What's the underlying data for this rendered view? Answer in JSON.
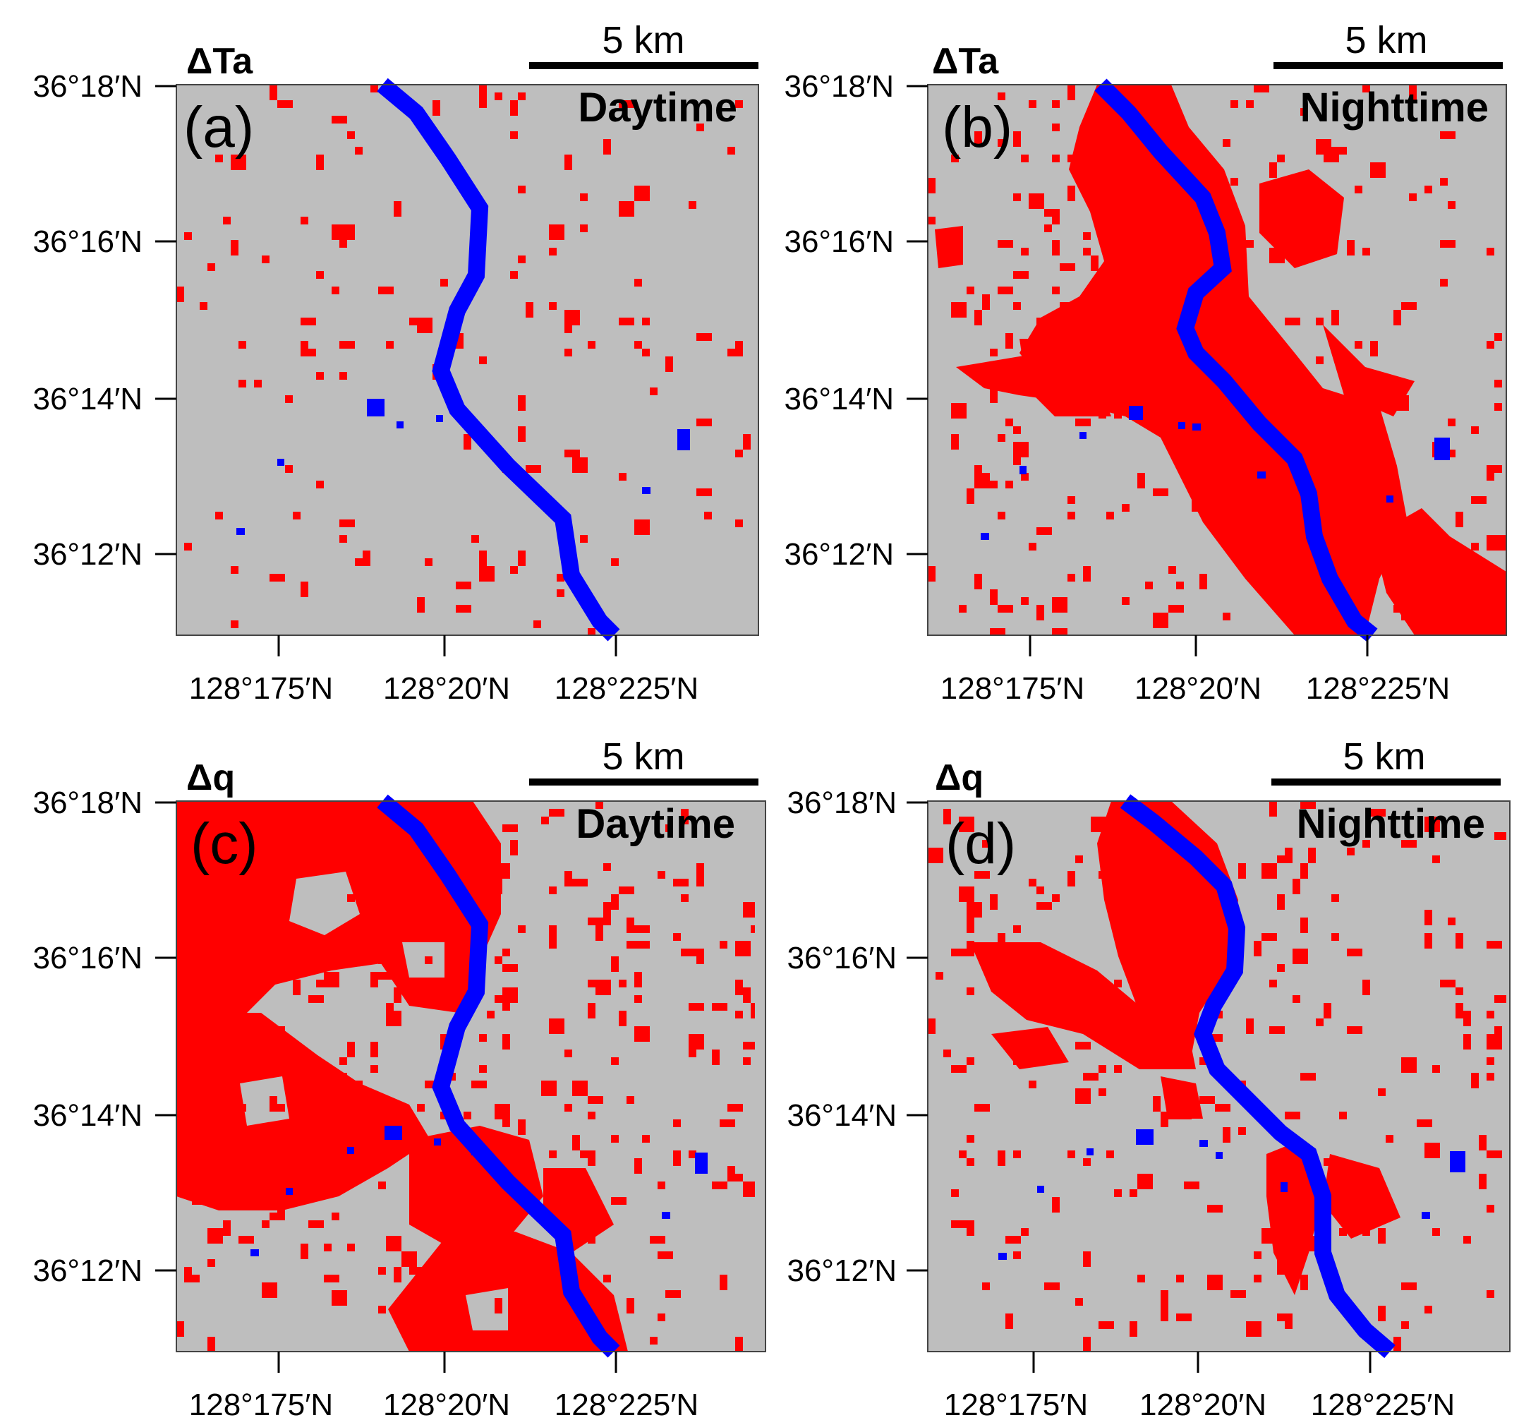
{
  "colors": {
    "background": "#bebebe",
    "increase": "#ff0000",
    "water": "#0000ff",
    "frame": "#444444"
  },
  "y_tick_labels": [
    "36°18′N",
    "36°16′N",
    "36°14′N",
    "36°12′N"
  ],
  "x_tick_labels": [
    "128°175′N",
    "128°20′N",
    "128°225′N"
  ],
  "scale_bar_label": "5 km",
  "panels": [
    {
      "letter": "(a)",
      "variable": "ΔTa",
      "period": "Daytime"
    },
    {
      "letter": "(b)",
      "variable": "ΔTa",
      "period": "Nighttime"
    },
    {
      "letter": "(c)",
      "variable": "Δq",
      "period": "Daytime"
    },
    {
      "letter": "(d)",
      "variable": "Δq",
      "period": "Nighttime"
    }
  ]
}
